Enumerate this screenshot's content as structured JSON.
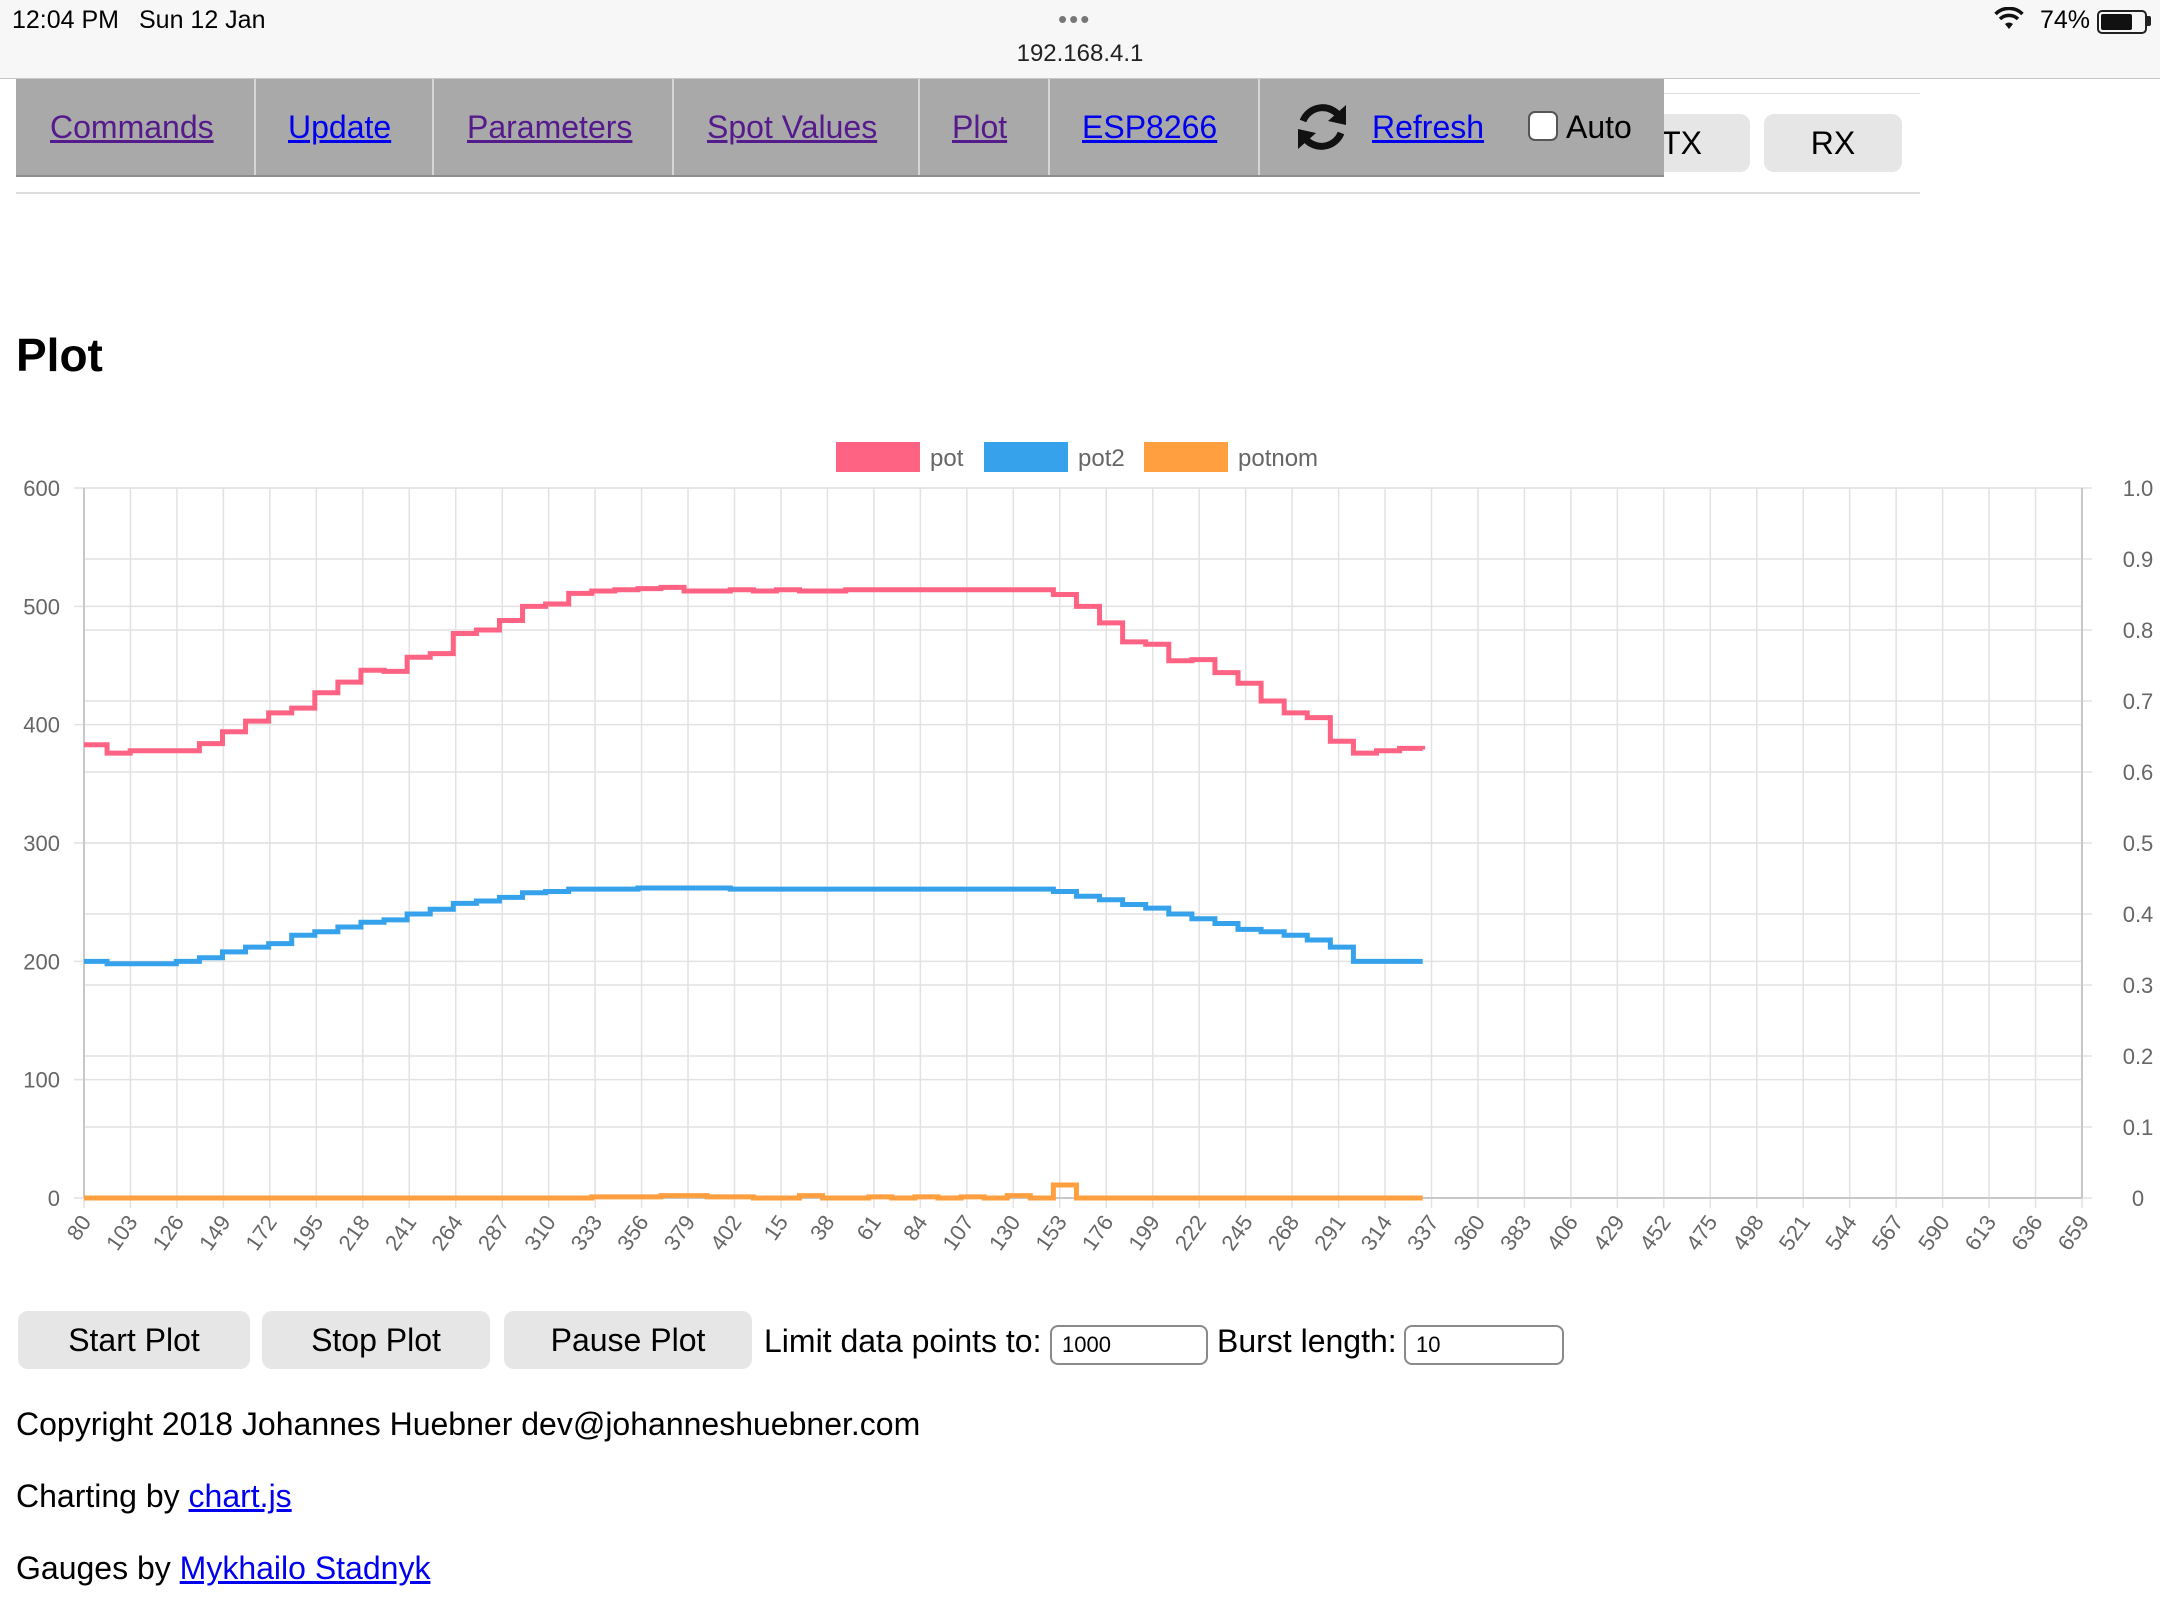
{
  "status": {
    "time": "12:04 PM",
    "date": "Sun 12 Jan",
    "url": "192.168.4.1",
    "battery_pct": "74%",
    "battery_level": 0.74,
    "dots": "•••"
  },
  "nav": {
    "items": [
      {
        "label": "Commands"
      },
      {
        "label": "Update"
      },
      {
        "label": "Parameters"
      },
      {
        "label": "Spot Values"
      },
      {
        "label": "Plot"
      },
      {
        "label": "ESP8266"
      }
    ],
    "refresh_label": "Refresh",
    "auto_label": "Auto",
    "auto_checked": false,
    "tx_label": "TX",
    "rx_label": "RX"
  },
  "page_title": "Plot",
  "chart_data": {
    "type": "line",
    "legend": [
      "pot",
      "pot2",
      "potnom"
    ],
    "legend_position": "top",
    "series": [
      {
        "name": "pot",
        "color": "#ff6384",
        "values": [
          383,
          376,
          378,
          378,
          378,
          384,
          394,
          403,
          410,
          414,
          427,
          436,
          446,
          445,
          457,
          460,
          477,
          480,
          488,
          500,
          502,
          511,
          513,
          514,
          515,
          516,
          513,
          513,
          514,
          513,
          514,
          513,
          513,
          514,
          514,
          514,
          514,
          514,
          514,
          514,
          514,
          514,
          510,
          500,
          486,
          470,
          468,
          454,
          455,
          444,
          435,
          420,
          410,
          406,
          386,
          376,
          378,
          380,
          379
        ]
      },
      {
        "name": "pot2",
        "color": "#36a2eb",
        "values": [
          200,
          198,
          198,
          198,
          200,
          203,
          208,
          212,
          215,
          222,
          225,
          229,
          233,
          235,
          240,
          244,
          249,
          251,
          254,
          258,
          259,
          261,
          261,
          261,
          262,
          262,
          262,
          262,
          261,
          261,
          261,
          261,
          261,
          261,
          261,
          261,
          261,
          261,
          261,
          261,
          261,
          261,
          259,
          255,
          252,
          248,
          245,
          240,
          236,
          232,
          227,
          225,
          222,
          218,
          212,
          200,
          200,
          200,
          200
        ]
      },
      {
        "name": "potnom",
        "color": "#ff9f40",
        "values": [
          0,
          0,
          0,
          0,
          0,
          0,
          0,
          0,
          0,
          0,
          0,
          0,
          0,
          0,
          0,
          0,
          0,
          0,
          0,
          0,
          0,
          0,
          1,
          1,
          1,
          2,
          2,
          1,
          1,
          0,
          0,
          2,
          0,
          0,
          1,
          0,
          1,
          0,
          1,
          0,
          2,
          0,
          11,
          0,
          0,
          0,
          0,
          0,
          0,
          0,
          0,
          0,
          0,
          0,
          0,
          0,
          0,
          0,
          0
        ]
      }
    ],
    "x_tick_labels": [
      "80",
      "103",
      "126",
      "149",
      "172",
      "195",
      "218",
      "241",
      "264",
      "287",
      "310",
      "333",
      "356",
      "379",
      "402",
      "15",
      "38",
      "61",
      "84",
      "107",
      "130",
      "153",
      "176",
      "199",
      "222",
      "245",
      "268",
      "291",
      "314",
      "337",
      "360",
      "383",
      "406",
      "429",
      "452",
      "475",
      "498",
      "521",
      "544",
      "567",
      "590",
      "613",
      "636",
      "659"
    ],
    "y_left": {
      "min": 0,
      "max": 600,
      "ticks": [
        "0",
        "100",
        "200",
        "300",
        "400",
        "500",
        "600"
      ]
    },
    "y_right": {
      "min": 0,
      "max": 1.0,
      "ticks": [
        "0",
        "0.1",
        "0.2",
        "0.3",
        "0.4",
        "0.5",
        "0.6",
        "0.7",
        "0.8",
        "0.9",
        "1.0"
      ]
    },
    "grid": true,
    "data_point_fraction_of_axis": 0.67
  },
  "controls": {
    "start_label": "Start Plot",
    "stop_label": "Stop Plot",
    "pause_label": "Pause Plot",
    "limit_label": "Limit data points to:",
    "limit_value": "1000",
    "burst_label": "Burst length:",
    "burst_value": "10"
  },
  "footer": {
    "copyright": "Copyright 2018 Johannes Huebner dev@johanneshuebner.com",
    "charting_prefix": "Charting by",
    "charting_link": "chart.js",
    "gauges_prefix": "Gauges by",
    "gauges_link": "Mykhailo Stadnyk"
  }
}
